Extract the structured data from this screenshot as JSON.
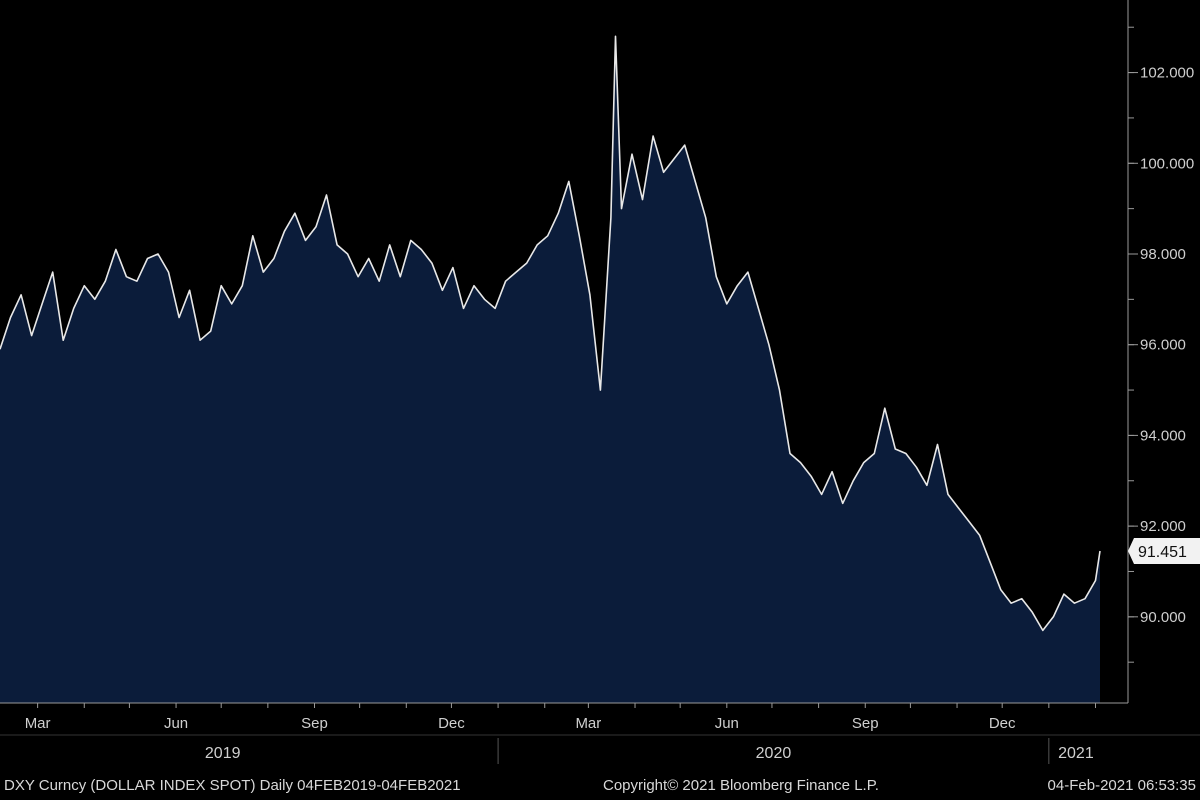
{
  "chart_data": {
    "type": "area",
    "ylim": [
      88.1,
      103.6
    ],
    "yticks": [
      90,
      92,
      94,
      96,
      98,
      100,
      102
    ],
    "ytick_labels": [
      "90.000",
      "92.000",
      "94.000",
      "96.000",
      "98.000",
      "100.000",
      "102.000"
    ],
    "x_ticks": [
      {
        "label": "Mar",
        "date": "2019-03-01"
      },
      {
        "label": "Jun",
        "date": "2019-06-01"
      },
      {
        "label": "Sep",
        "date": "2019-09-01"
      },
      {
        "label": "Dec",
        "date": "2019-12-01"
      },
      {
        "label": "Mar",
        "date": "2020-03-01"
      },
      {
        "label": "Jun",
        "date": "2020-06-01"
      },
      {
        "label": "Sep",
        "date": "2020-09-01"
      },
      {
        "label": "Dec",
        "date": "2020-12-01"
      }
    ],
    "years": [
      {
        "label": "2019",
        "date": "2019-07-02"
      },
      {
        "label": "2020",
        "date": "2020-07-02"
      },
      {
        "label": "2021",
        "date": "2021-01-19"
      }
    ],
    "year_dividers": [
      "2020-01-01",
      "2021-01-01"
    ],
    "series": [
      {
        "x": [
          "2019-02-04",
          "2019-02-11",
          "2019-02-18",
          "2019-02-25",
          "2019-03-04",
          "2019-03-11",
          "2019-03-18",
          "2019-03-25",
          "2019-04-01",
          "2019-04-08",
          "2019-04-15",
          "2019-04-22",
          "2019-04-29",
          "2019-05-06",
          "2019-05-13",
          "2019-05-20",
          "2019-05-27",
          "2019-06-03",
          "2019-06-10",
          "2019-06-17",
          "2019-06-24",
          "2019-07-01",
          "2019-07-08",
          "2019-07-15",
          "2019-07-22",
          "2019-07-29",
          "2019-08-05",
          "2019-08-12",
          "2019-08-19",
          "2019-08-26",
          "2019-09-02",
          "2019-09-09",
          "2019-09-16",
          "2019-09-23",
          "2019-09-30",
          "2019-10-07",
          "2019-10-14",
          "2019-10-21",
          "2019-10-28",
          "2019-11-04",
          "2019-11-11",
          "2019-11-18",
          "2019-11-25",
          "2019-12-02",
          "2019-12-09",
          "2019-12-16",
          "2019-12-23",
          "2019-12-30",
          "2020-01-06",
          "2020-01-13",
          "2020-01-20",
          "2020-01-27",
          "2020-02-03",
          "2020-02-10",
          "2020-02-17",
          "2020-02-24",
          "2020-03-02",
          "2020-03-09",
          "2020-03-16",
          "2020-03-19",
          "2020-03-23",
          "2020-03-30",
          "2020-04-06",
          "2020-04-13",
          "2020-04-20",
          "2020-04-27",
          "2020-05-04",
          "2020-05-11",
          "2020-05-18",
          "2020-05-25",
          "2020-06-01",
          "2020-06-08",
          "2020-06-15",
          "2020-06-22",
          "2020-06-29",
          "2020-07-06",
          "2020-07-13",
          "2020-07-20",
          "2020-07-27",
          "2020-08-03",
          "2020-08-10",
          "2020-08-17",
          "2020-08-24",
          "2020-08-31",
          "2020-09-07",
          "2020-09-14",
          "2020-09-21",
          "2020-09-28",
          "2020-10-05",
          "2020-10-12",
          "2020-10-19",
          "2020-10-26",
          "2020-11-02",
          "2020-11-09",
          "2020-11-16",
          "2020-11-23",
          "2020-11-30",
          "2020-12-07",
          "2020-12-14",
          "2020-12-21",
          "2020-12-28",
          "2021-01-04",
          "2021-01-11",
          "2021-01-18",
          "2021-01-25",
          "2021-02-01",
          "2021-02-04"
        ],
        "y": [
          95.9,
          96.6,
          97.1,
          96.2,
          96.9,
          97.6,
          96.1,
          96.8,
          97.3,
          97.0,
          97.4,
          98.1,
          97.5,
          97.4,
          97.9,
          98.0,
          97.6,
          96.6,
          97.2,
          96.1,
          96.3,
          97.3,
          96.9,
          97.3,
          98.4,
          97.6,
          97.9,
          98.5,
          98.9,
          98.3,
          98.6,
          99.3,
          98.2,
          98.0,
          97.5,
          97.9,
          97.4,
          98.2,
          97.5,
          98.3,
          98.1,
          97.8,
          97.2,
          97.7,
          96.8,
          97.3,
          97.0,
          96.8,
          97.4,
          97.6,
          97.8,
          98.2,
          98.4,
          98.9,
          99.6,
          98.4,
          97.1,
          95.0,
          98.8,
          102.8,
          99.0,
          100.2,
          99.2,
          100.6,
          99.8,
          100.1,
          100.4,
          99.6,
          98.8,
          97.5,
          96.9,
          97.3,
          97.6,
          96.8,
          96.0,
          95.0,
          93.6,
          93.4,
          93.1,
          92.7,
          93.2,
          92.5,
          93.0,
          93.4,
          93.6,
          94.6,
          93.7,
          93.6,
          93.3,
          92.9,
          93.8,
          92.7,
          92.4,
          92.1,
          91.8,
          91.2,
          90.6,
          90.3,
          90.4,
          90.1,
          89.7,
          90.0,
          90.5,
          90.3,
          90.4,
          90.8,
          91.451
        ]
      }
    ],
    "last_value": "91.451",
    "footer": {
      "ticker": "DXY Curncy (DOLLAR INDEX SPOT)  Daily 04FEB2019-04FEB2021",
      "copyright": "Copyright© 2021 Bloomberg Finance L.P.",
      "timestamp": "04-Feb-2021 06:53:35"
    },
    "colors": {
      "background": "#000000",
      "area_fill": "#0b1c3a",
      "line": "#e8e8e8",
      "axis": "#9a9a9a"
    }
  }
}
